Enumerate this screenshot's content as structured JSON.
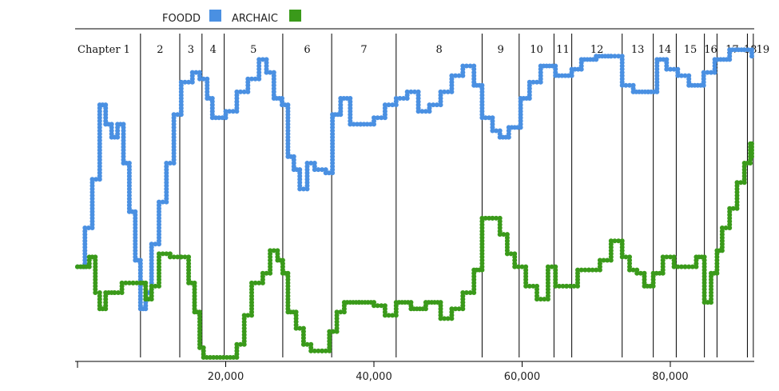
{
  "chart_data": {
    "type": "line",
    "x_axis": {
      "min": 0,
      "max": 91000,
      "ticks": [
        20000,
        40000,
        60000,
        80000
      ],
      "tick_labels": [
        "20,000",
        "40,000",
        "60,000",
        "80,000"
      ]
    },
    "y_axis": {
      "min": 0,
      "max": 1
    },
    "legend": [
      {
        "label": "FOODD",
        "color": "#4a90e2"
      },
      {
        "label": "ARCHAIC",
        "color": "#3a9a1a"
      }
    ],
    "chapters": [
      {
        "label": "Chapter 1",
        "start": 0
      },
      {
        "label": "2",
        "start": 8500
      },
      {
        "label": "3",
        "start": 13800
      },
      {
        "label": "4",
        "start": 16800
      },
      {
        "label": "5",
        "start": 19800
      },
      {
        "label": "6",
        "start": 27700
      },
      {
        "label": "7",
        "start": 34300
      },
      {
        "label": "8",
        "start": 43000
      },
      {
        "label": "9",
        "start": 54600
      },
      {
        "label": "10",
        "start": 59600
      },
      {
        "label": "11",
        "start": 64300
      },
      {
        "label": "12",
        "start": 66700
      },
      {
        "label": "13",
        "start": 73500
      },
      {
        "label": "14",
        "start": 77700
      },
      {
        "label": "15",
        "start": 80800
      },
      {
        "label": "16",
        "start": 84600
      },
      {
        "label": "17",
        "start": 86300
      },
      {
        "label": "18",
        "start": 90400
      },
      {
        "label": "19",
        "start": 91200
      }
    ],
    "series": [
      {
        "name": "FOODD",
        "color": "#4a90e2",
        "points": [
          [
            0,
            0.28
          ],
          [
            1000,
            0.4
          ],
          [
            2000,
            0.55
          ],
          [
            3000,
            0.78
          ],
          [
            3800,
            0.72
          ],
          [
            4600,
            0.68
          ],
          [
            5400,
            0.72
          ],
          [
            6200,
            0.6
          ],
          [
            7000,
            0.45
          ],
          [
            7800,
            0.3
          ],
          [
            8500,
            0.15
          ],
          [
            9200,
            0.2
          ],
          [
            10000,
            0.35
          ],
          [
            11000,
            0.48
          ],
          [
            12000,
            0.6
          ],
          [
            13000,
            0.75
          ],
          [
            14000,
            0.85
          ],
          [
            15500,
            0.88
          ],
          [
            16500,
            0.86
          ],
          [
            17500,
            0.8
          ],
          [
            18200,
            0.74
          ],
          [
            20000,
            0.76
          ],
          [
            21500,
            0.82
          ],
          [
            23000,
            0.86
          ],
          [
            24500,
            0.92
          ],
          [
            25500,
            0.88
          ],
          [
            26500,
            0.8
          ],
          [
            27600,
            0.78
          ],
          [
            28400,
            0.62
          ],
          [
            29200,
            0.58
          ],
          [
            30000,
            0.52
          ],
          [
            31000,
            0.6
          ],
          [
            32000,
            0.58
          ],
          [
            33500,
            0.57
          ],
          [
            34400,
            0.75
          ],
          [
            35500,
            0.8
          ],
          [
            36800,
            0.72
          ],
          [
            38200,
            0.72
          ],
          [
            40000,
            0.74
          ],
          [
            41500,
            0.78
          ],
          [
            43000,
            0.8
          ],
          [
            44500,
            0.82
          ],
          [
            46000,
            0.76
          ],
          [
            47500,
            0.78
          ],
          [
            49000,
            0.82
          ],
          [
            50500,
            0.87
          ],
          [
            52000,
            0.9
          ],
          [
            53500,
            0.84
          ],
          [
            54600,
            0.74
          ],
          [
            56000,
            0.7
          ],
          [
            57000,
            0.68
          ],
          [
            58200,
            0.71
          ],
          [
            59800,
            0.8
          ],
          [
            61000,
            0.85
          ],
          [
            62500,
            0.9
          ],
          [
            64500,
            0.87
          ],
          [
            66700,
            0.89
          ],
          [
            68000,
            0.92
          ],
          [
            70000,
            0.93
          ],
          [
            72000,
            0.93
          ],
          [
            73500,
            0.84
          ],
          [
            75000,
            0.82
          ],
          [
            77000,
            0.82
          ],
          [
            78200,
            0.92
          ],
          [
            79500,
            0.89
          ],
          [
            81000,
            0.87
          ],
          [
            82500,
            0.84
          ],
          [
            84500,
            0.88
          ],
          [
            86000,
            0.92
          ],
          [
            88000,
            0.95
          ],
          [
            90000,
            0.95
          ],
          [
            91000,
            0.93
          ]
        ]
      },
      {
        "name": "ARCHAIC",
        "color": "#3a9a1a",
        "points": [
          [
            0,
            0.28
          ],
          [
            800,
            0.28
          ],
          [
            1600,
            0.31
          ],
          [
            2400,
            0.2
          ],
          [
            3000,
            0.15
          ],
          [
            3800,
            0.2
          ],
          [
            5000,
            0.2
          ],
          [
            6000,
            0.23
          ],
          [
            7500,
            0.23
          ],
          [
            8500,
            0.23
          ],
          [
            9200,
            0.18
          ],
          [
            10000,
            0.22
          ],
          [
            11000,
            0.32
          ],
          [
            12500,
            0.31
          ],
          [
            14000,
            0.31
          ],
          [
            15000,
            0.23
          ],
          [
            15800,
            0.14
          ],
          [
            16500,
            0.03
          ],
          [
            17000,
            0.0
          ],
          [
            21500,
            0.04
          ],
          [
            22500,
            0.13
          ],
          [
            23500,
            0.23
          ],
          [
            25000,
            0.26
          ],
          [
            26000,
            0.33
          ],
          [
            27000,
            0.3
          ],
          [
            27700,
            0.26
          ],
          [
            28400,
            0.14
          ],
          [
            29500,
            0.09
          ],
          [
            30500,
            0.04
          ],
          [
            31500,
            0.02
          ],
          [
            33000,
            0.02
          ],
          [
            34000,
            0.08
          ],
          [
            35000,
            0.14
          ],
          [
            36000,
            0.17
          ],
          [
            38000,
            0.17
          ],
          [
            40000,
            0.16
          ],
          [
            41500,
            0.13
          ],
          [
            43000,
            0.17
          ],
          [
            45000,
            0.15
          ],
          [
            47000,
            0.17
          ],
          [
            49000,
            0.12
          ],
          [
            50500,
            0.15
          ],
          [
            52000,
            0.2
          ],
          [
            53500,
            0.27
          ],
          [
            54600,
            0.43
          ],
          [
            56000,
            0.43
          ],
          [
            57000,
            0.38
          ],
          [
            58000,
            0.32
          ],
          [
            59000,
            0.28
          ],
          [
            60500,
            0.22
          ],
          [
            62000,
            0.18
          ],
          [
            63500,
            0.28
          ],
          [
            64500,
            0.22
          ],
          [
            66000,
            0.22
          ],
          [
            67500,
            0.27
          ],
          [
            69000,
            0.27
          ],
          [
            70500,
            0.3
          ],
          [
            72000,
            0.36
          ],
          [
            73500,
            0.31
          ],
          [
            74500,
            0.27
          ],
          [
            75500,
            0.26
          ],
          [
            76500,
            0.22
          ],
          [
            77700,
            0.26
          ],
          [
            79000,
            0.31
          ],
          [
            80500,
            0.28
          ],
          [
            82000,
            0.28
          ],
          [
            83500,
            0.31
          ],
          [
            84600,
            0.17
          ],
          [
            85500,
            0.26
          ],
          [
            86300,
            0.33
          ],
          [
            87000,
            0.4
          ],
          [
            88000,
            0.46
          ],
          [
            89000,
            0.54
          ],
          [
            90000,
            0.6
          ],
          [
            90800,
            0.66
          ],
          [
            91000,
            0.62
          ]
        ]
      }
    ]
  }
}
